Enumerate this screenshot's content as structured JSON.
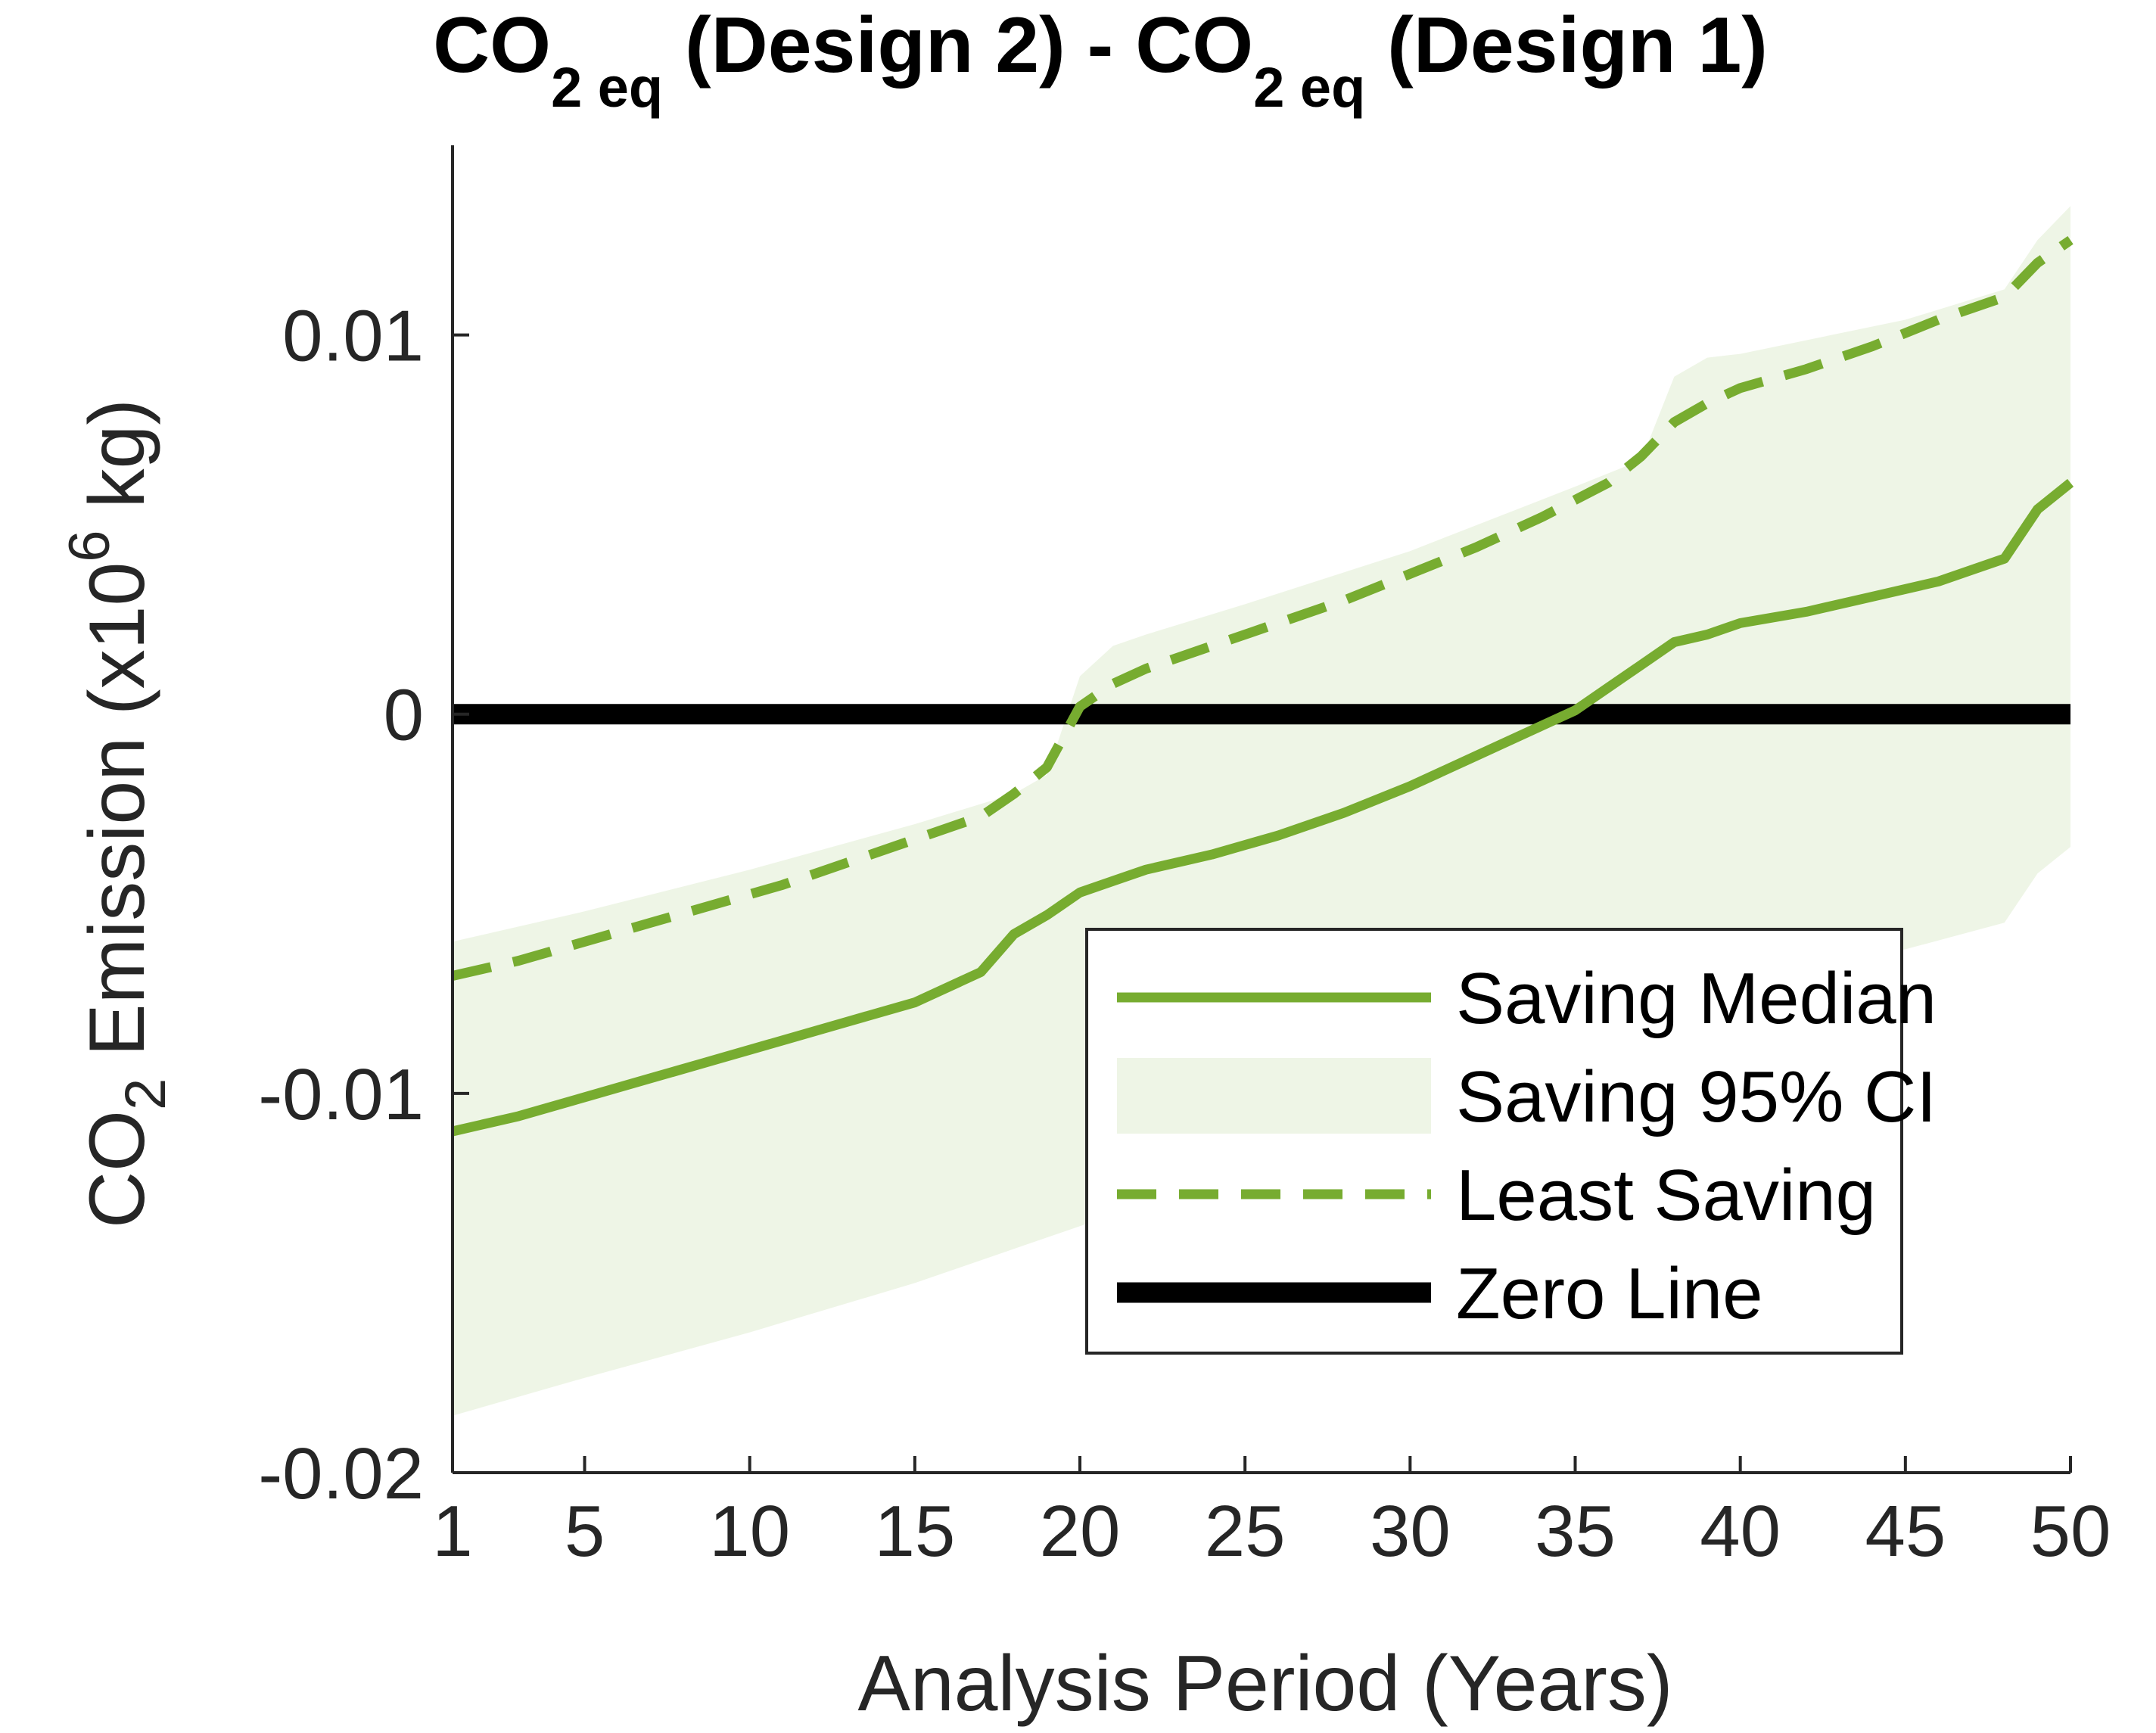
{
  "colors": {
    "accent_green": "#77AC30",
    "ci_fill": "#EEF5E6",
    "zero_line": "#000000",
    "axis": "#262626"
  },
  "title": {
    "part1": "CO",
    "sub1": "2 eq",
    "part2": " (Design 2) - CO",
    "sub2": "2 eq",
    "part3": " (Design 1)"
  },
  "ylabel": {
    "part1": "CO",
    "sub": "2",
    "part2": " Emission (x10",
    "sup": "6",
    "part3": " kg)"
  },
  "xlabel": "Analysis Period (Years)",
  "legend": {
    "position": "bottom-right",
    "items": [
      {
        "label": "Saving Median",
        "style": "solid-line"
      },
      {
        "label": "Saving 95% CI",
        "style": "fill"
      },
      {
        "label": "Least Saving",
        "style": "dashed-line"
      },
      {
        "label": "Zero Line",
        "style": "thick-black-line"
      }
    ]
  },
  "chart_data": {
    "type": "line",
    "title": "CO2 eq (Design 2) - CO2 eq (Design 1)",
    "xlabel": "Analysis Period (Years)",
    "ylabel": "CO2 Emission (x10^6 kg)",
    "xlim": [
      1,
      50
    ],
    "ylim": [
      -0.02,
      0.015
    ],
    "xticks": [
      1,
      5,
      10,
      15,
      20,
      25,
      30,
      35,
      40,
      45,
      50
    ],
    "xtick_labels": [
      "1",
      "5",
      "10",
      "15",
      "20",
      "25",
      "30",
      "35",
      "40",
      "45",
      "50"
    ],
    "yticks": [
      -0.02,
      -0.01,
      0,
      0.01
    ],
    "ytick_labels": [
      "-0.02",
      "-0.01",
      "0",
      "0.01"
    ],
    "grid": false,
    "series": [
      {
        "name": "Saving Median",
        "style": "solid",
        "x": [
          1,
          3,
          5,
          7,
          9,
          11,
          13,
          15,
          17,
          18,
          19,
          20,
          21,
          22,
          24,
          26,
          28,
          30,
          32,
          34,
          35,
          36,
          37,
          38,
          39,
          40,
          42,
          44,
          46,
          48,
          49,
          50
        ],
        "y": [
          -0.011,
          -0.0106,
          -0.0101,
          -0.0096,
          -0.0091,
          -0.0086,
          -0.0081,
          -0.0076,
          -0.0068,
          -0.0058,
          -0.0053,
          -0.0047,
          -0.0044,
          -0.0041,
          -0.0037,
          -0.0032,
          -0.0026,
          -0.0019,
          -0.0011,
          -0.0003,
          0.0001,
          0.0007,
          0.0013,
          0.0019,
          0.0021,
          0.0024,
          0.0027,
          0.0031,
          0.0035,
          0.0041,
          0.0054,
          0.0061
        ]
      },
      {
        "name": "Least Saving",
        "style": "dashed",
        "x": [
          1,
          3,
          5,
          7,
          9,
          11,
          13,
          15,
          17,
          18,
          19,
          20,
          21,
          22,
          24,
          26,
          28,
          30,
          32,
          34,
          36,
          37,
          38,
          39,
          40,
          42,
          44,
          46,
          48,
          49,
          50
        ],
        "y": [
          -0.0069,
          -0.0065,
          -0.006,
          -0.0055,
          -0.005,
          -0.0045,
          -0.0039,
          -0.0033,
          -0.0027,
          -0.0021,
          -0.0014,
          0.0002,
          0.0008,
          0.0012,
          0.0018,
          0.0024,
          0.003,
          0.0037,
          0.0044,
          0.0052,
          0.0061,
          0.0068,
          0.0077,
          0.0082,
          0.0086,
          0.0091,
          0.0097,
          0.0104,
          0.011,
          0.0119,
          0.0125
        ]
      }
    ],
    "ci_band": {
      "name": "Saving 95% CI",
      "x": [
        1,
        5,
        10,
        15,
        18,
        19,
        20,
        21,
        22,
        25,
        30,
        35,
        37,
        38,
        39,
        40,
        45,
        48,
        49,
        50
      ],
      "upper": [
        -0.006,
        -0.0052,
        -0.0041,
        -0.0029,
        -0.0021,
        -0.0016,
        0.001,
        0.0018,
        0.0021,
        0.0029,
        0.0043,
        0.006,
        0.0067,
        0.0089,
        0.0094,
        0.0095,
        0.0104,
        0.0112,
        0.0125,
        0.0134
      ],
      "lower": [
        -0.0185,
        -0.0175,
        -0.0163,
        -0.015,
        -0.0141,
        -0.0138,
        -0.0135,
        -0.0132,
        -0.0128,
        -0.0119,
        -0.0102,
        -0.0085,
        -0.0078,
        -0.0075,
        -0.0072,
        -0.0069,
        -0.0062,
        -0.0055,
        -0.0042,
        -0.0035
      ]
    },
    "zero_line": {
      "name": "Zero Line",
      "y": 0
    }
  }
}
